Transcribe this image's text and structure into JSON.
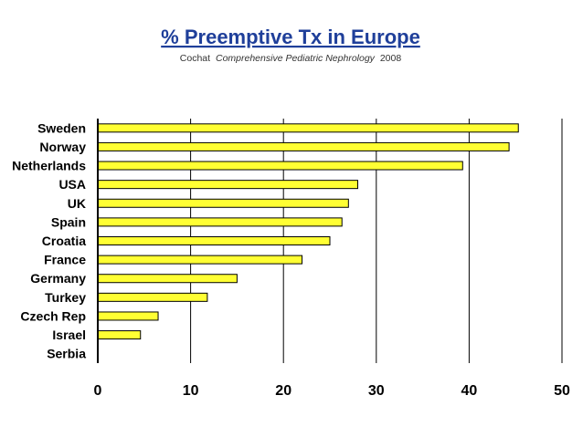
{
  "chart_data": {
    "type": "bar",
    "orientation": "horizontal",
    "title": "% Preemptive Tx in Europe",
    "subtitle": {
      "author": "Cochat",
      "source": "Comprehensive Pediatric Nephrology",
      "year": "2008"
    },
    "categories": [
      "Sweden",
      "Norway",
      "Netherlands",
      "USA",
      "UK",
      "Spain",
      "Croatia",
      "France",
      "Germany",
      "Turkey",
      "Czech Rep",
      "Israel",
      "Serbia"
    ],
    "values": [
      45.3,
      44.3,
      39.3,
      28.0,
      27.0,
      26.3,
      25.0,
      22.0,
      15.0,
      11.8,
      6.5,
      4.6,
      0
    ],
    "xlim": [
      0,
      50
    ],
    "xticks": [
      "0",
      "10",
      "20",
      "30",
      "40",
      "50"
    ],
    "xlabel": "",
    "ylabel": "",
    "grid": "vertical",
    "legend": "none",
    "bar_color": "#ffff33",
    "bar_stroke": "#000000",
    "title_color": "#1f3f9a"
  }
}
